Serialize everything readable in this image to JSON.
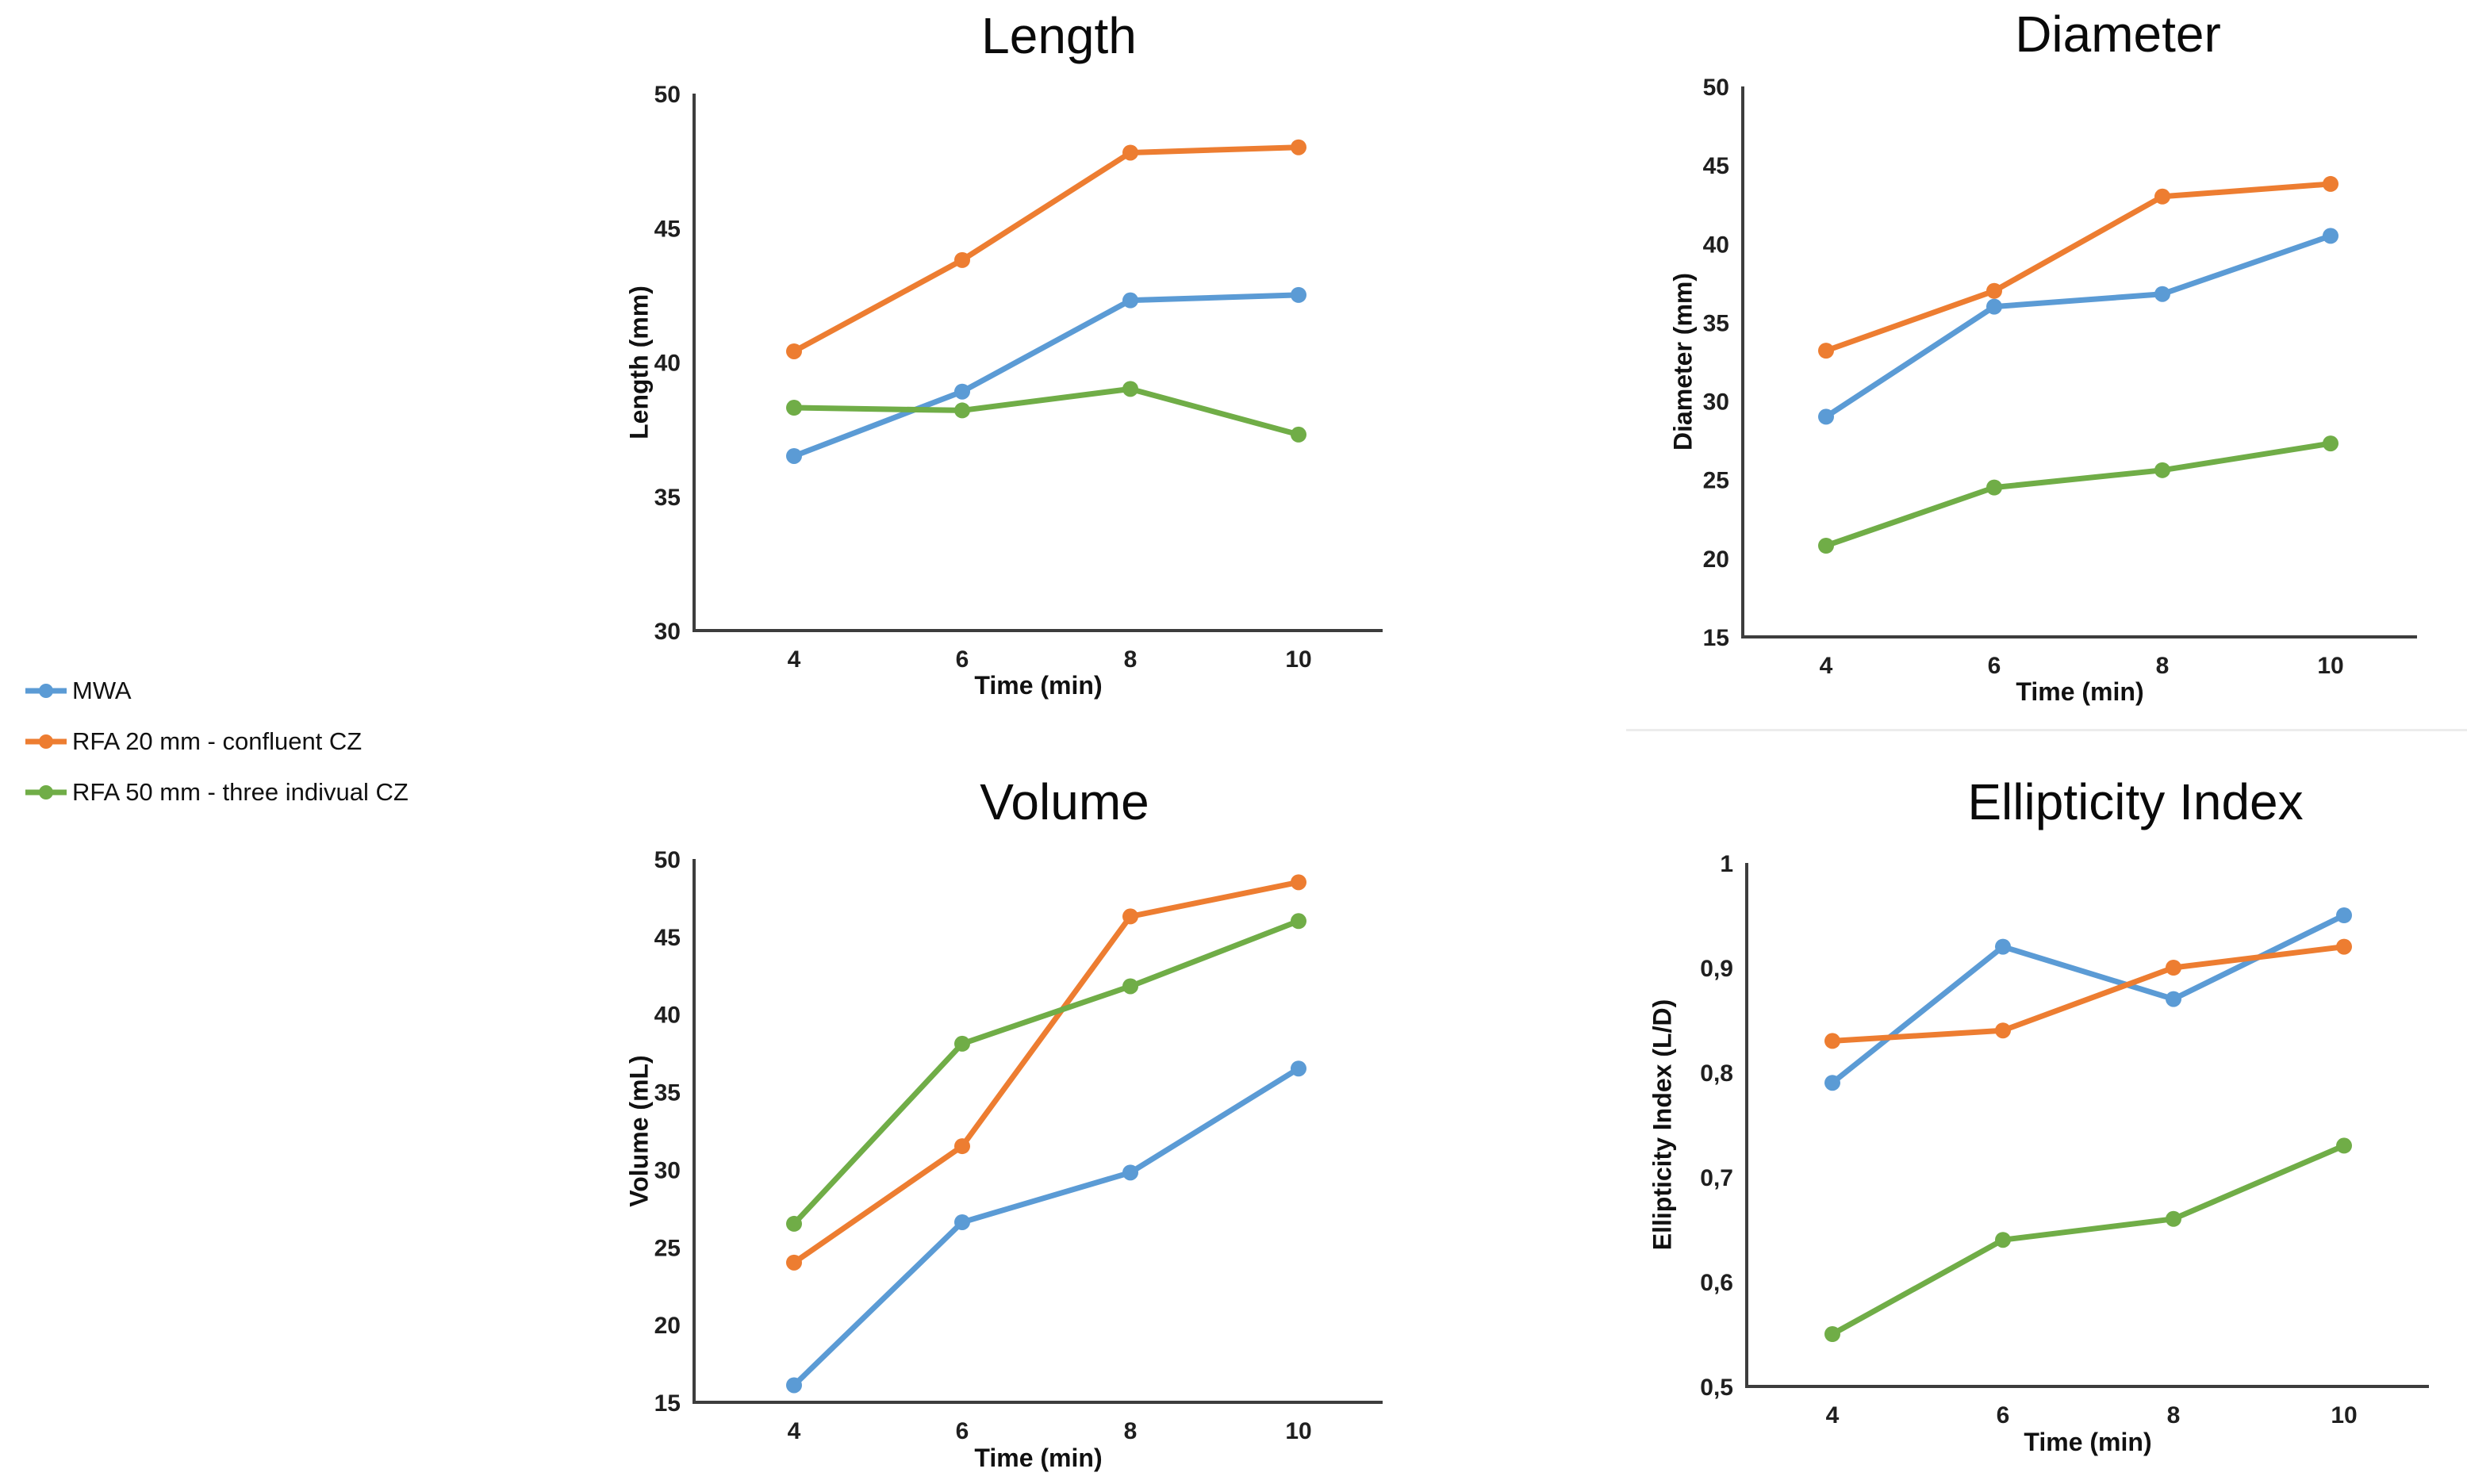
{
  "figure": {
    "background": "#ffffff"
  },
  "legend": {
    "position": "left",
    "items": [
      {
        "label": "MWA",
        "color": "#5B9BD5"
      },
      {
        "label": "RFA 20 mm - confluent CZ",
        "color": "#ED7D31"
      },
      {
        "label": "RFA 50 mm - three indivual CZ",
        "color": "#70AD47"
      }
    ]
  },
  "chart_data": [
    {
      "type": "line",
      "title": "Length",
      "xlabel": "Time (min)",
      "ylabel": "Length (mm)",
      "x": [
        4,
        6,
        8,
        10
      ],
      "x_labels": [
        "4",
        "6",
        "8",
        "10"
      ],
      "ylim": [
        30,
        50
      ],
      "ytick_values": [
        50,
        45,
        40,
        35,
        30
      ],
      "ytick_labels": [
        "50",
        "45",
        "40",
        "35",
        "30"
      ],
      "grid": false,
      "legend_position": "outside-left",
      "series": [
        {
          "name": "MWA",
          "color": "#5B9BD5",
          "values": [
            36.5,
            38.9,
            42.3,
            42.5
          ]
        },
        {
          "name": "RFA 20 mm - confluent CZ",
          "color": "#ED7D31",
          "values": [
            40.4,
            43.8,
            47.8,
            48.0
          ]
        },
        {
          "name": "RFA 50 mm - three indivual CZ",
          "color": "#70AD47",
          "values": [
            38.3,
            38.2,
            39.0,
            37.3
          ]
        }
      ]
    },
    {
      "type": "line",
      "title": "Diameter",
      "xlabel": "Time (min)",
      "ylabel": "Diameter (mm)",
      "x": [
        4,
        6,
        8,
        10
      ],
      "x_labels": [
        "4",
        "6",
        "8",
        "10"
      ],
      "ylim": [
        15,
        50
      ],
      "ytick_values": [
        50,
        45,
        40,
        35,
        30,
        25,
        20,
        15
      ],
      "ytick_labels": [
        "50",
        "45",
        "40",
        "35",
        "30",
        "25",
        "20",
        "15"
      ],
      "grid": false,
      "series": [
        {
          "name": "MWA",
          "color": "#5B9BD5",
          "values": [
            29.0,
            36.0,
            36.8,
            40.5
          ]
        },
        {
          "name": "RFA 20 mm - confluent CZ",
          "color": "#ED7D31",
          "values": [
            33.2,
            37.0,
            43.0,
            43.8
          ]
        },
        {
          "name": "RFA 50 mm - three indivual CZ",
          "color": "#70AD47",
          "values": [
            20.8,
            24.5,
            25.6,
            27.3
          ]
        }
      ]
    },
    {
      "type": "line",
      "title": "Volume",
      "xlabel": "Time (min)",
      "ylabel": "Volume (mL)",
      "x": [
        4,
        6,
        8,
        10
      ],
      "x_labels": [
        "4",
        "6",
        "8",
        "10"
      ],
      "ylim": [
        15,
        50
      ],
      "ytick_values": [
        50,
        45,
        40,
        35,
        30,
        25,
        20,
        15
      ],
      "ytick_labels": [
        "50",
        "45",
        "40",
        "35",
        "30",
        "25",
        "20",
        "15"
      ],
      "grid": false,
      "series": [
        {
          "name": "MWA",
          "color": "#5B9BD5",
          "values": [
            16.1,
            26.6,
            29.8,
            36.5
          ]
        },
        {
          "name": "RFA 20 mm - confluent CZ",
          "color": "#ED7D31",
          "values": [
            24.0,
            31.5,
            46.3,
            48.5
          ]
        },
        {
          "name": "RFA 50 mm - three indivual CZ",
          "color": "#70AD47",
          "values": [
            26.5,
            38.1,
            41.8,
            46.0
          ]
        }
      ]
    },
    {
      "type": "line",
      "title": "Ellipticity Index",
      "xlabel": "Time (min)",
      "ylabel": "Ellipticity Index (L/D)",
      "x": [
        4,
        6,
        8,
        10
      ],
      "x_labels": [
        "4",
        "6",
        "8",
        "10"
      ],
      "ylim": [
        0.5,
        1
      ],
      "ytick_values": [
        1,
        0.9,
        0.8,
        0.7,
        0.6,
        0.5
      ],
      "ytick_labels": [
        "1",
        "0,9",
        "0,8",
        "0,7",
        "0,6",
        "0,5"
      ],
      "grid": false,
      "series": [
        {
          "name": "MWA",
          "color": "#5B9BD5",
          "values": [
            0.79,
            0.92,
            0.87,
            0.95
          ]
        },
        {
          "name": "RFA 20 mm - confluent CZ",
          "color": "#ED7D31",
          "values": [
            0.83,
            0.84,
            0.9,
            0.92
          ]
        },
        {
          "name": "RFA 50 mm - three indivual CZ",
          "color": "#70AD47",
          "values": [
            0.55,
            0.64,
            0.66,
            0.73
          ]
        }
      ]
    }
  ],
  "style": {
    "axis_color": "#3d3d3d",
    "tick_text_color": "#1f1f1f",
    "title_color": "#0a0a0a",
    "divider_color": "#ececec",
    "line_width": 7,
    "marker_radius": 10
  }
}
